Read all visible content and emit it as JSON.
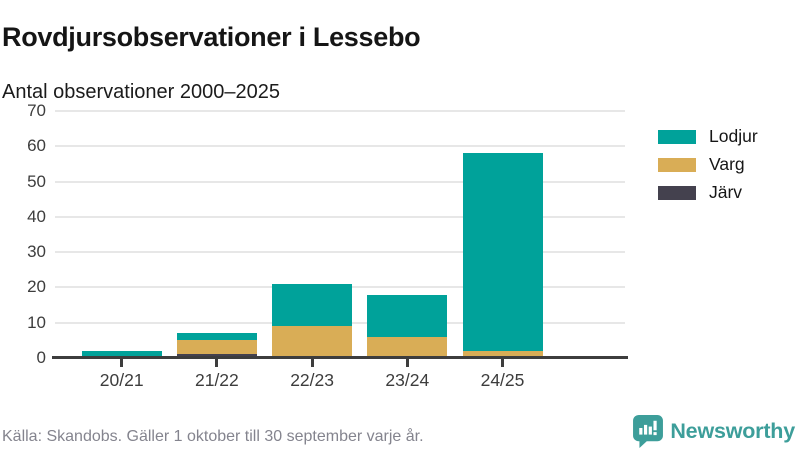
{
  "header": {
    "title": "Rovdjursobservationer i Lessebo",
    "subtitle": "Antal observationer 2000–2025"
  },
  "chart_data": {
    "type": "bar",
    "stacked": true,
    "title": "Rovdjursobservationer i Lessebo",
    "subtitle": "Antal observationer 2000–2025",
    "categories": [
      "20/21",
      "21/22",
      "22/23",
      "23/24",
      "24/25"
    ],
    "series": [
      {
        "name": "Lodjur",
        "color": "#00a29a",
        "values": [
          2,
          2,
          12,
          12,
          56
        ]
      },
      {
        "name": "Varg",
        "color": "#d9ad56",
        "values": [
          0,
          4,
          9,
          6,
          2
        ]
      },
      {
        "name": "Järv",
        "color": "#44414e",
        "values": [
          0,
          1,
          0,
          0,
          0
        ]
      }
    ],
    "stack_order_bottom_to_top": [
      "Järv",
      "Varg",
      "Lodjur"
    ],
    "totals": [
      2,
      7,
      21,
      18,
      58
    ],
    "yticks": [
      0,
      10,
      20,
      30,
      40,
      50,
      60,
      70
    ],
    "ylim": [
      0,
      70
    ],
    "xlabel": "",
    "ylabel": "",
    "grid": true,
    "legend_position": "right"
  },
  "footer": {
    "source": "Källa: Skandobs. Gäller 1 oktober till 30 september varje år.",
    "brand": "Newsworthy",
    "logo_icon": "newsworthy-speech-bubble-chart-icon"
  },
  "colors": {
    "axis": "#3d3d3d",
    "gridline": "#e7e7e7",
    "tick_label": "#3d3d3d",
    "footer_text": "#84848e",
    "brand_teal": "#3d9e9a"
  }
}
